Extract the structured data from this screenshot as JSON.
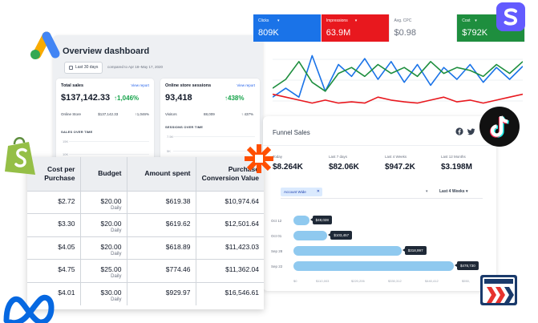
{
  "overview": {
    "title": "Overview dashboard",
    "date_range": "Last 30 days",
    "compare": "compared to Apr 18–May 17, 2020",
    "total_sales": {
      "title": "Total sales",
      "link": "View report",
      "value": "$137,142.33",
      "change": "↑1,046%",
      "row_label": "Online Store",
      "row_value": "$137,142.33",
      "row_change": "↑1,046%",
      "chart_label": "SALES OVER TIME",
      "axis": [
        "15K",
        "10K"
      ]
    },
    "sessions": {
      "title": "Online store sessions",
      "link": "View report",
      "value": "93,418",
      "change": "↑438%",
      "row_label": "Visitors",
      "row_value": "88,009",
      "row_change": "↑ 437%",
      "chart_label": "SESSIONS OVER TIME",
      "axis": [
        "7.5K",
        "5K"
      ]
    }
  },
  "metrics": [
    {
      "label": "Clicks",
      "value": "809K",
      "style": "blue",
      "dropdown": true
    },
    {
      "label": "Impressions",
      "value": "63.9M",
      "style": "red",
      "dropdown": true
    },
    {
      "label": "Avg. CPC",
      "value": "$0.98",
      "style": "white",
      "dropdown": false
    },
    {
      "label": "Cost",
      "value": "$792K",
      "style": "green",
      "dropdown": true
    }
  ],
  "line_chart": {
    "series": [
      {
        "color": "#1a73e8",
        "values": [
          0.2,
          0.35,
          0.2,
          0.9,
          0.3,
          0.75,
          0.55,
          0.85,
          0.5,
          0.8,
          0.45,
          0.75,
          0.4,
          0.7,
          0.5,
          0.75,
          0.45,
          0.7,
          0.5,
          0.72
        ]
      },
      {
        "color": "#e8181e",
        "values": [
          0.25,
          0.2,
          0.15,
          0.1,
          0.15,
          0.1,
          0.12,
          0.1,
          0.2,
          0.15,
          0.12,
          0.1,
          0.15,
          0.2,
          0.12,
          0.15,
          0.1,
          0.15,
          0.2,
          0.25
        ]
      },
      {
        "color": "#1e8e3e",
        "values": [
          0.35,
          0.5,
          0.8,
          0.45,
          0.3,
          0.6,
          0.7,
          0.55,
          0.75,
          0.6,
          0.7,
          0.55,
          0.8,
          0.6,
          0.7,
          0.65,
          0.55,
          0.75,
          0.6,
          0.8
        ]
      }
    ]
  },
  "funnel": {
    "title": "Funnel Sales",
    "periods": [
      {
        "label": "Today",
        "value": "$8.264K"
      },
      {
        "label": "Last 7 days",
        "value": "$82.06K"
      },
      {
        "label": "Last 4 Weeks",
        "value": "$947.2K"
      },
      {
        "label": "Last 12 Months",
        "value": "$3.198M"
      }
    ],
    "filter_chip": "Account Wide",
    "period_select": "Last 4 Weeks",
    "bars": [
      {
        "label": "Oct 12",
        "fraction": 0.098,
        "tooltip": "$48,028"
      },
      {
        "label": "Oct 01",
        "fraction": 0.212,
        "tooltip": "$103,457"
      },
      {
        "label": "Sep 28",
        "fraction": 0.674,
        "tooltip": "$318,997"
      },
      {
        "label": "Sep 22",
        "fraction": 1.0,
        "tooltip": "$478,730"
      }
    ],
    "x_ticks": [
      "$0",
      "$110,003",
      "$220,206",
      "$330,312",
      "$440,412",
      "$550,"
    ]
  },
  "table": {
    "headers": [
      "Cost per Purchase",
      "Budget",
      "Amount spent",
      "Purchase Conversion Value"
    ],
    "rows": [
      {
        "cpp": "$2.72",
        "budget": "$20.00",
        "period": "Daily",
        "spent": "$619.38",
        "value": "$10,974.64"
      },
      {
        "cpp": "$3.30",
        "budget": "$20.00",
        "period": "Daily",
        "spent": "$619.62",
        "value": "$12,501.64"
      },
      {
        "cpp": "$4.05",
        "budget": "$20.00",
        "period": "Daily",
        "spent": "$618.89",
        "value": "$11,423.03"
      },
      {
        "cpp": "$4.75",
        "budget": "$25.00",
        "period": "Daily",
        "spent": "$774.46",
        "value": "$11,362.04"
      },
      {
        "cpp": "$4.01",
        "budget": "$30.00",
        "period": "Daily",
        "spent": "$929.97",
        "value": "$16,546.61"
      }
    ]
  },
  "colors": {
    "google_ads_yellow": "#f9ab00",
    "google_ads_blue": "#4285f4",
    "google_ads_green": "#34a853",
    "shopify_green": "#95bf47",
    "zapier_orange": "#ff4f00",
    "stripe_purple": "#635bff",
    "meta_blue": "#0668e1",
    "clickfunnels_blue": "#1a3a6b",
    "clickfunnels_red": "#e7332e"
  }
}
